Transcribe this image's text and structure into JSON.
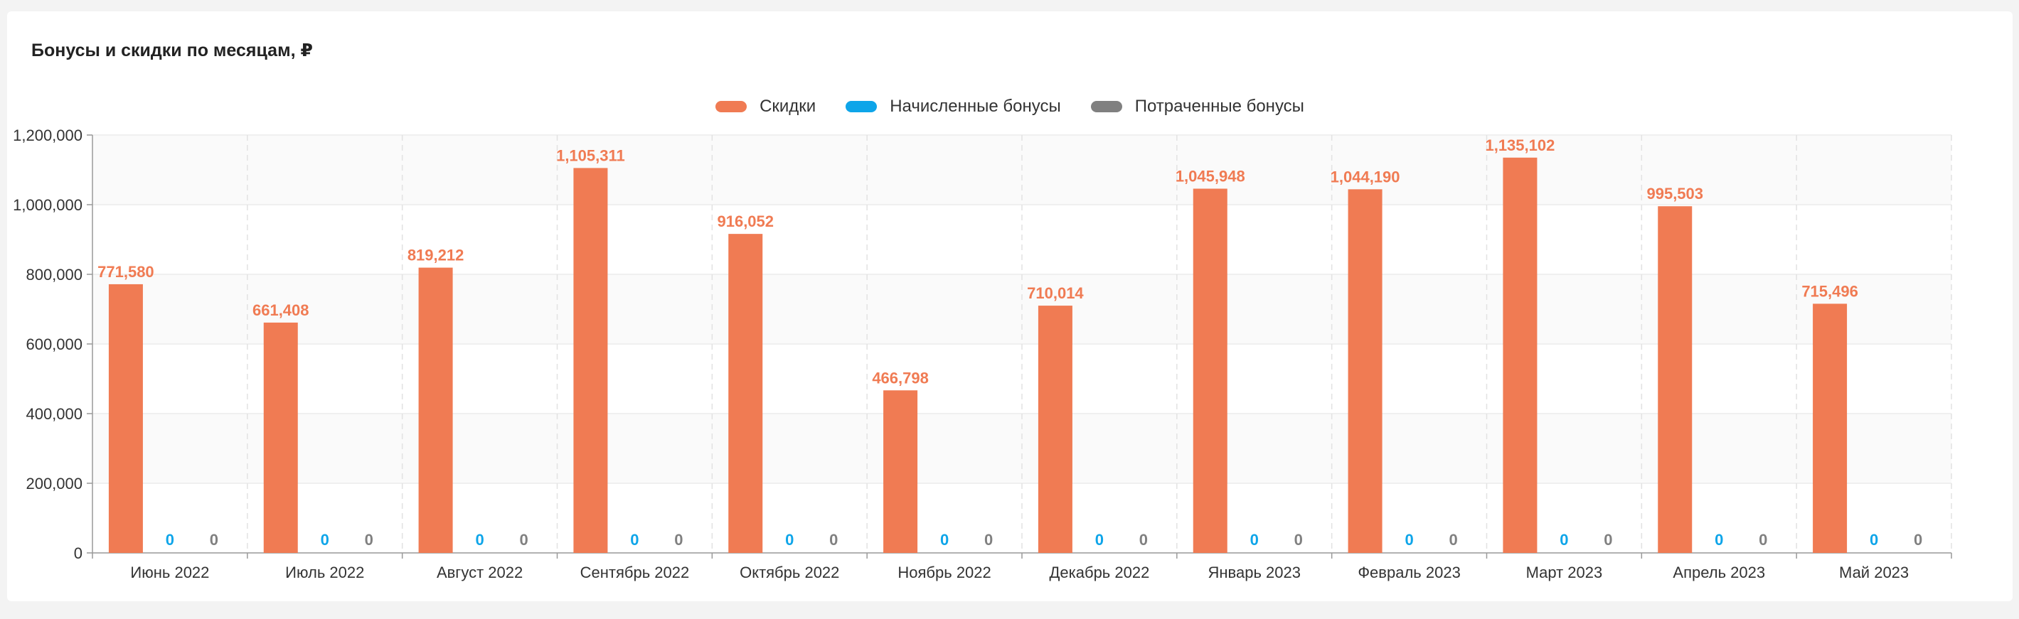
{
  "page": {
    "title": "Бонусы и скидки по месяцам, ₽"
  },
  "chart_data": {
    "type": "bar",
    "title": "Бонусы и скидки по месяцам, ₽",
    "xlabel": "",
    "ylabel": "",
    "ylim": [
      0,
      1200000
    ],
    "yticks": [
      0,
      200000,
      400000,
      600000,
      800000,
      1000000,
      1200000
    ],
    "ytick_labels": [
      "0",
      "200,000",
      "400,000",
      "600,000",
      "800,000",
      "1,000,000",
      "1,200,000"
    ],
    "grid": true,
    "legend_position": "top-center",
    "categories": [
      "Июнь 2022",
      "Июль 2022",
      "Август 2022",
      "Сентябрь 2022",
      "Октябрь 2022",
      "Ноябрь 2022",
      "Декабрь 2022",
      "Январь 2023",
      "Февраль 2023",
      "Март 2023",
      "Апрель 2023",
      "Май 2023"
    ],
    "series": [
      {
        "name": "Скидки",
        "color": "#f07b53",
        "values": [
          771580,
          661408,
          819212,
          1105311,
          916052,
          466798,
          710014,
          1045948,
          1044190,
          1135102,
          995503,
          715496
        ],
        "labels": [
          "771,580",
          "661,408",
          "819,212",
          "1,105,311",
          "916,052",
          "466,798",
          "710,014",
          "1,045,948",
          "1,044,190",
          "1,135,102",
          "995,503",
          "715,496"
        ]
      },
      {
        "name": "Начисленные бонусы",
        "color": "#0ea5e9",
        "values": [
          0,
          0,
          0,
          0,
          0,
          0,
          0,
          0,
          0,
          0,
          0,
          0
        ],
        "labels": [
          "0",
          "0",
          "0",
          "0",
          "0",
          "0",
          "0",
          "0",
          "0",
          "0",
          "0",
          "0"
        ]
      },
      {
        "name": "Потраченные бонусы",
        "color": "#808080",
        "values": [
          0,
          0,
          0,
          0,
          0,
          0,
          0,
          0,
          0,
          0,
          0,
          0
        ],
        "labels": [
          "0",
          "0",
          "0",
          "0",
          "0",
          "0",
          "0",
          "0",
          "0",
          "0",
          "0",
          "0"
        ]
      }
    ]
  }
}
